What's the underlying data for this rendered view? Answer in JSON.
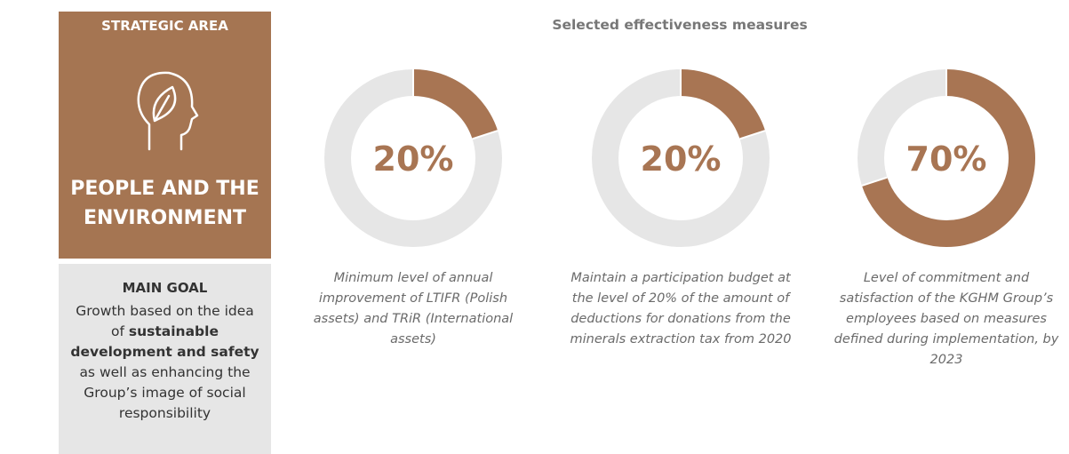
{
  "panel": {
    "heading": "STRATEGIC AREA",
    "area": "PEOPLE AND THE ENVIRONMENT",
    "goal_heading": "MAIN GOAL",
    "goal_parts": [
      "Growth based on the idea of ",
      "sustainable development and safety",
      " as well as enhancing the Group’s image of social responsibility"
    ]
  },
  "title": "Selected effectiveness measures",
  "chart_data": [
    {
      "type": "donut",
      "values": [
        20
      ],
      "value_labels": [
        "20%"
      ],
      "color": "#a87553",
      "track_color": "#e6e6e6",
      "caption": "Minimum level of annual improvement of LTIFR (Polish assets) and TRiR (International assets)"
    },
    {
      "type": "donut",
      "values": [
        20
      ],
      "value_labels": [
        "20%"
      ],
      "color": "#a87553",
      "track_color": "#e6e6e6",
      "caption": "Maintain a participation budget at the level of 20% of the amount of deductions for donations from the minerals extraction tax from 2020"
    },
    {
      "type": "donut",
      "values": [
        70
      ],
      "value_labels": [
        "70%"
      ],
      "color": "#a87553",
      "track_color": "#e6e6e6",
      "caption": "Level of commitment and satisfaction of the KGHM Group’s employees based on measures defined during implementation, by 2023"
    }
  ]
}
